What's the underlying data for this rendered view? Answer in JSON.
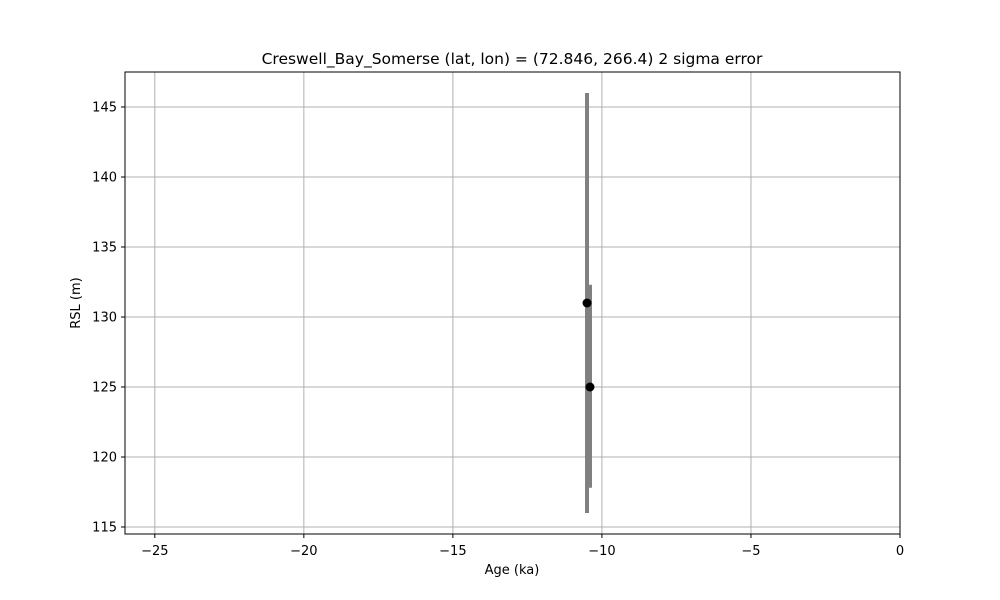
{
  "chart_data": {
    "type": "scatter",
    "title": "Creswell_Bay_Somerse (lat, lon) = (72.846, 266.4)  2 sigma error",
    "xlabel": "Age (ka)",
    "ylabel": "RSL (m)",
    "xlim": [
      -26,
      0
    ],
    "ylim": [
      114.5,
      147.5
    ],
    "xticks": [
      -25,
      -20,
      -15,
      -10,
      -5,
      0
    ],
    "xtick_labels": [
      "−25",
      "−20",
      "−15",
      "−10",
      "−5",
      "0"
    ],
    "yticks": [
      115,
      120,
      125,
      130,
      135,
      140,
      145
    ],
    "ytick_labels": [
      "115",
      "120",
      "125",
      "130",
      "135",
      "140",
      "145"
    ],
    "grid": true,
    "errorbar_color": "#808080",
    "marker_color": "#000000",
    "points": [
      {
        "x": -10.5,
        "y": 131.0,
        "yerr_low": 116.0,
        "yerr_high": 146.0
      },
      {
        "x": -10.4,
        "y": 125.0,
        "yerr_low": 117.8,
        "yerr_high": 132.3
      }
    ]
  }
}
